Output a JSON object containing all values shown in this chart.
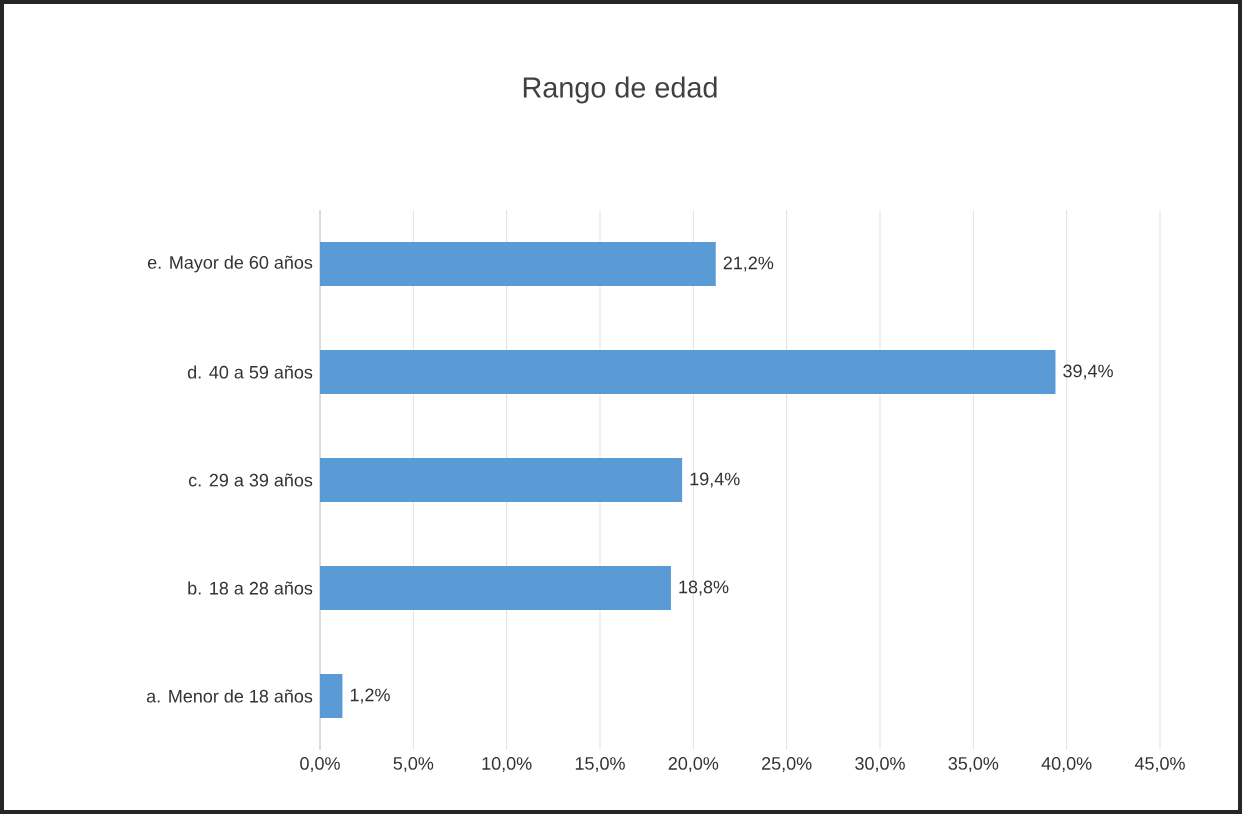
{
  "chart_data": {
    "type": "bar",
    "orientation": "horizontal",
    "title": "Rango de edad",
    "categories": [
      "e. Mayor de 60 años",
      "d. 40 a 59 años",
      "c. 29 a 39 años",
      "b. 18 a 28 años",
      "a. Menor de 18 años"
    ],
    "values": [
      21.2,
      39.4,
      19.4,
      18.8,
      1.2
    ],
    "value_labels": [
      "21,2%",
      "39,4%",
      "19,4%",
      "18,8%",
      "1,2%"
    ],
    "color": "#5b9bd5",
    "xlim": [
      0,
      45
    ],
    "xticks": [
      {
        "value": 0,
        "label": "0,0%"
      },
      {
        "value": 5,
        "label": "5,0%"
      },
      {
        "value": 10,
        "label": "10,0%"
      },
      {
        "value": 15,
        "label": "15,0%"
      },
      {
        "value": 20,
        "label": "20,0%"
      },
      {
        "value": 25,
        "label": "25,0%"
      },
      {
        "value": 30,
        "label": "30,0%"
      },
      {
        "value": 35,
        "label": "35,0%"
      },
      {
        "value": 40,
        "label": "40,0%"
      },
      {
        "value": 45,
        "label": "45,0%"
      }
    ],
    "grid": "x"
  }
}
